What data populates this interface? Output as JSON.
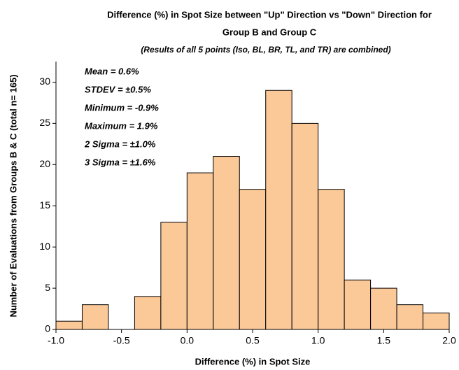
{
  "chart_data": {
    "type": "histogram",
    "title": "Difference (%) in Spot Size between \"Up\" Direction vs \"Down\" Direction for",
    "title_line2": "Group B and Group C",
    "subtitle": "(Results of all 5 points (Iso, BL, BR, TL, and TR) are combined)",
    "x_label": "Difference (%) in Spot Size",
    "y_label": "Number of Evaluations from Groups B & C (total n= 165)",
    "annotations": [
      "Mean = 0.6%",
      "STDEV = ±0.5%",
      "Minimum = -0.9%",
      "Maximum = 1.9%",
      "2 Sigma = ±1.0%",
      "3 Sigma = ±1.6%"
    ],
    "bins": [
      -1,
      -0.8,
      -0.6,
      -0.4,
      -0.2,
      0,
      0.2,
      0.4,
      0.6,
      0.8,
      1,
      1.2,
      1.4,
      1.6,
      1.8,
      2
    ],
    "values": [
      1,
      3,
      0,
      4,
      13,
      19,
      21,
      17,
      29,
      25,
      17,
      6,
      5,
      3,
      2
    ],
    "color": "#fbc898",
    "xlim": [
      -1,
      2
    ],
    "xticks": [
      {
        "value": -1,
        "label": "-1.0"
      },
      -0.5,
      {
        "value": 0,
        "label": "0.0"
      },
      0.5,
      {
        "value": 1,
        "label": "1.0"
      },
      1.5,
      {
        "value": 2,
        "label": "2.0"
      }
    ],
    "ylim": [
      0,
      32.5
    ],
    "yticks": [
      0,
      5,
      10,
      15,
      20,
      25,
      30
    ]
  }
}
